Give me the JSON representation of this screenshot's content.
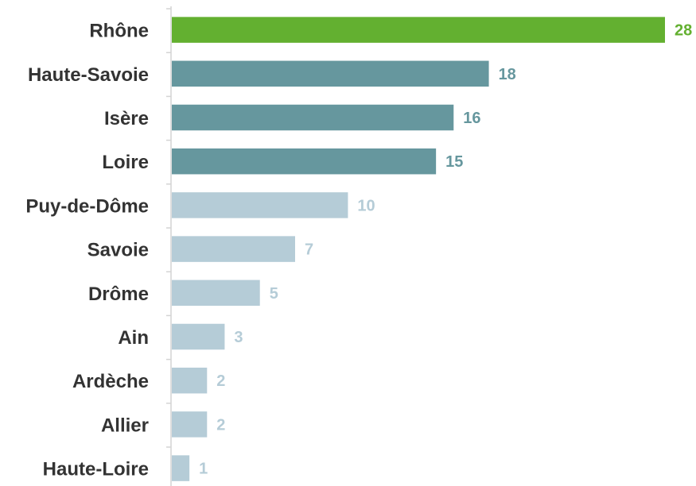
{
  "chart_data": {
    "type": "bar",
    "orientation": "horizontal",
    "title": "",
    "xlabel": "",
    "ylabel": "",
    "categories": [
      "Rhône",
      "Haute-Savoie",
      "Isère",
      "Loire",
      "Puy-de-Dôme",
      "Savoie",
      "Drôme",
      "Ain",
      "Ardèche",
      "Allier",
      "Haute-Loire"
    ],
    "values": [
      28,
      18,
      16,
      15,
      10,
      7,
      5,
      3,
      2,
      2,
      1
    ],
    "xlim": [
      0,
      28
    ],
    "grid": false,
    "legend": "none",
    "colors": [
      "#63b030",
      "#66979e",
      "#66979e",
      "#66979e",
      "#b5ccd7",
      "#b5ccd7",
      "#b5ccd7",
      "#b5ccd7",
      "#b5ccd7",
      "#b5ccd7",
      "#b5ccd7"
    ]
  }
}
